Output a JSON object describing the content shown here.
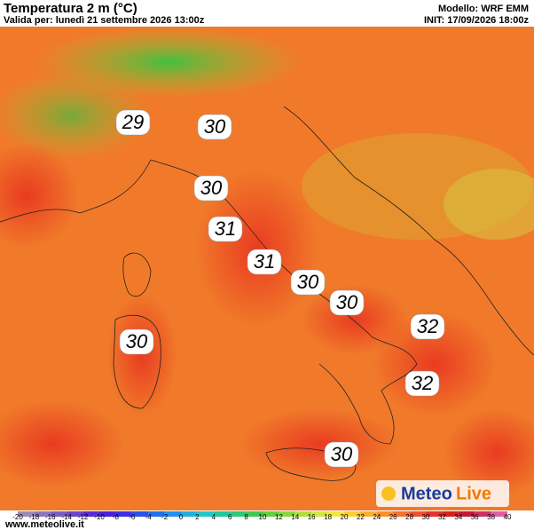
{
  "header": {
    "title": "Temperatura 2 m (°C)",
    "valid": "Valida per: lunedì 21 settembre 2026 13:00z",
    "model": "Modello: WRF EMM",
    "init": "INIT: 17/09/2026 18:00z"
  },
  "labels": [
    29,
    30,
    30,
    31,
    31,
    30,
    30,
    32,
    30,
    32,
    30
  ],
  "legend": {
    "ticks": [
      -20,
      -18,
      -16,
      -14,
      -12,
      -10,
      -8,
      -6,
      -4,
      -2,
      0,
      2,
      4,
      6,
      8,
      10,
      12,
      14,
      16,
      18,
      20,
      22,
      24,
      26,
      28,
      30,
      32,
      34,
      36,
      38,
      40
    ],
    "colors": [
      "#9a8cb8",
      "#8a78c0",
      "#7a5ec8",
      "#6a44d0",
      "#5a2ad8",
      "#4a20e0",
      "#3a30e8",
      "#2a50f0",
      "#2070f0",
      "#2090f0",
      "#20b0e0",
      "#20c8c8",
      "#20c8a0",
      "#30c878",
      "#40c850",
      "#60d040",
      "#88d840",
      "#b0e040",
      "#d0e840",
      "#f0e840",
      "#f8d030",
      "#f8b030",
      "#f89030",
      "#f87030",
      "#f05030",
      "#e83030",
      "#d82020",
      "#c81838",
      "#d03068",
      "#e060a0"
    ]
  },
  "footer": "www.meteolive.it",
  "logo": {
    "part1": "Meteo",
    "part2": "Live"
  }
}
